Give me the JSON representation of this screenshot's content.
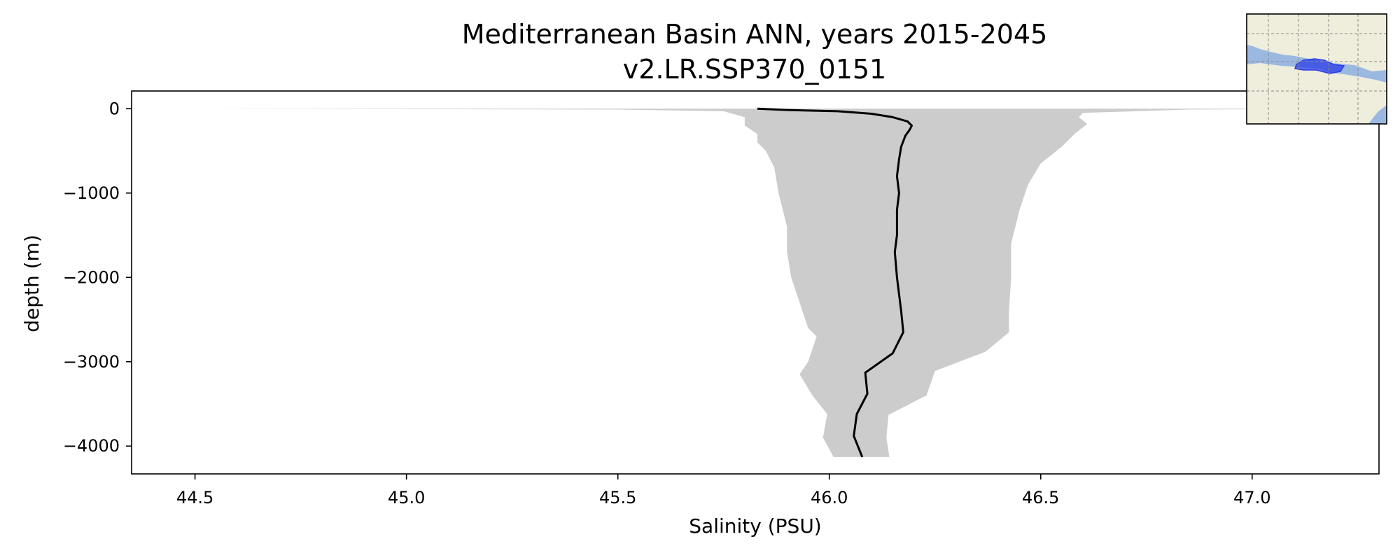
{
  "chart_data": {
    "type": "area",
    "title": "Mediterranean Basin ANN, years 2015-2045",
    "subtitle": "v2.LR.SSP370_0151",
    "xlabel": "Salinity (PSU)",
    "ylabel": "depth (m)",
    "xlim": [
      44.35,
      47.3
    ],
    "ylim": [
      -4330,
      210
    ],
    "xticks": [
      44.5,
      45.0,
      45.5,
      46.0,
      46.5,
      47.0
    ],
    "xtick_labels": [
      "44.5",
      "45.0",
      "45.5",
      "46.0",
      "46.5",
      "47.0"
    ],
    "yticks": [
      0,
      -1000,
      -2000,
      -3000,
      -4000
    ],
    "ytick_labels": [
      "0",
      "−1000",
      "−2000",
      "−3000",
      "−4000"
    ],
    "grid": false,
    "mean_line": {
      "color": "#000000",
      "points": [
        [
          45.83,
          0
        ],
        [
          45.9,
          -15
        ],
        [
          46.02,
          -30
        ],
        [
          46.1,
          -60
        ],
        [
          46.15,
          -100
        ],
        [
          46.185,
          -150
        ],
        [
          46.195,
          -200
        ],
        [
          46.19,
          -250
        ],
        [
          46.18,
          -320
        ],
        [
          46.17,
          -450
        ],
        [
          46.165,
          -600
        ],
        [
          46.16,
          -800
        ],
        [
          46.165,
          -1000
        ],
        [
          46.16,
          -1200
        ],
        [
          46.16,
          -1500
        ],
        [
          46.155,
          -1700
        ],
        [
          46.16,
          -2000
        ],
        [
          46.165,
          -2200
        ],
        [
          46.17,
          -2400
        ],
        [
          46.175,
          -2650
        ],
        [
          46.15,
          -2900
        ],
        [
          46.085,
          -3130
        ],
        [
          46.09,
          -3380
        ],
        [
          46.065,
          -3620
        ],
        [
          46.058,
          -3880
        ],
        [
          46.078,
          -4130
        ]
      ]
    },
    "range_band": {
      "color": "#cccccc",
      "min": [
        [
          44.5,
          0
        ],
        [
          45.5,
          -10
        ],
        [
          45.75,
          -30
        ],
        [
          45.8,
          -100
        ],
        [
          45.8,
          -200
        ],
        [
          45.83,
          -300
        ],
        [
          45.83,
          -400
        ],
        [
          45.85,
          -500
        ],
        [
          45.87,
          -700
        ],
        [
          45.88,
          -1000
        ],
        [
          45.9,
          -1400
        ],
        [
          45.9,
          -1700
        ],
        [
          45.91,
          -2000
        ],
        [
          45.93,
          -2300
        ],
        [
          45.95,
          -2600
        ],
        [
          45.97,
          -2700
        ],
        [
          45.95,
          -3000
        ],
        [
          45.93,
          -3150
        ],
        [
          45.96,
          -3400
        ],
        [
          45.995,
          -3620
        ],
        [
          45.985,
          -3900
        ],
        [
          46.01,
          -4130
        ]
      ],
      "max": [
        [
          47.3,
          0
        ],
        [
          46.85,
          -10
        ],
        [
          46.6,
          -50
        ],
        [
          46.59,
          -100
        ],
        [
          46.61,
          -180
        ],
        [
          46.58,
          -300
        ],
        [
          46.55,
          -450
        ],
        [
          46.5,
          -650
        ],
        [
          46.47,
          -900
        ],
        [
          46.45,
          -1200
        ],
        [
          46.44,
          -1400
        ],
        [
          46.43,
          -1600
        ],
        [
          46.43,
          -2000
        ],
        [
          46.425,
          -2400
        ],
        [
          46.425,
          -2650
        ],
        [
          46.37,
          -2880
        ],
        [
          46.25,
          -3110
        ],
        [
          46.23,
          -3400
        ],
        [
          46.14,
          -3630
        ],
        [
          46.135,
          -3900
        ],
        [
          46.142,
          -4130
        ]
      ]
    },
    "inset_map": {
      "ocean_color": "#9bb8e1",
      "land_color": "#efeedc",
      "region_color": "#2a3de8"
    }
  }
}
